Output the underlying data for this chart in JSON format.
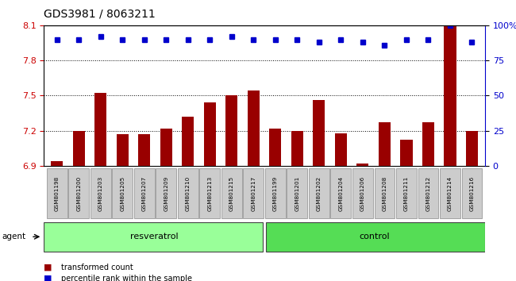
{
  "title": "GDS3981 / 8063211",
  "samples": [
    "GSM801198",
    "GSM801200",
    "GSM801203",
    "GSM801205",
    "GSM801207",
    "GSM801209",
    "GSM801210",
    "GSM801213",
    "GSM801215",
    "GSM801217",
    "GSM801199",
    "GSM801201",
    "GSM801202",
    "GSM801204",
    "GSM801206",
    "GSM801208",
    "GSM801211",
    "GSM801212",
    "GSM801214",
    "GSM801216"
  ],
  "bar_values": [
    6.94,
    7.2,
    7.52,
    7.17,
    7.17,
    7.22,
    7.32,
    7.44,
    7.5,
    7.54,
    7.22,
    7.2,
    7.46,
    7.18,
    6.92,
    7.27,
    7.12,
    7.27,
    8.09,
    7.2
  ],
  "percentile_values": [
    90,
    90,
    92,
    90,
    90,
    90,
    90,
    90,
    92,
    90,
    90,
    90,
    88,
    90,
    88,
    86,
    90,
    90,
    100,
    88
  ],
  "resveratrol_count": 10,
  "control_count": 10,
  "ylim_left": [
    6.9,
    8.1
  ],
  "ylim_right": [
    0,
    100
  ],
  "yticks_left": [
    6.9,
    7.2,
    7.5,
    7.8,
    8.1
  ],
  "yticks_right": [
    0,
    25,
    50,
    75,
    100
  ],
  "bar_color": "#990000",
  "dot_color": "#0000cc",
  "agent_label": "agent",
  "group1_label": "resveratrol",
  "group2_label": "control",
  "legend_bar": "transformed count",
  "legend_dot": "percentile rank within the sample",
  "resveratrol_bg": "#99ff99",
  "control_bg": "#55dd55",
  "xlabel_bg": "#cccccc",
  "grid_color": "#000000",
  "right_axis_color": "#0000cc",
  "left_axis_color": "#cc0000",
  "title_fontsize": 10,
  "bar_bottom": 6.9
}
